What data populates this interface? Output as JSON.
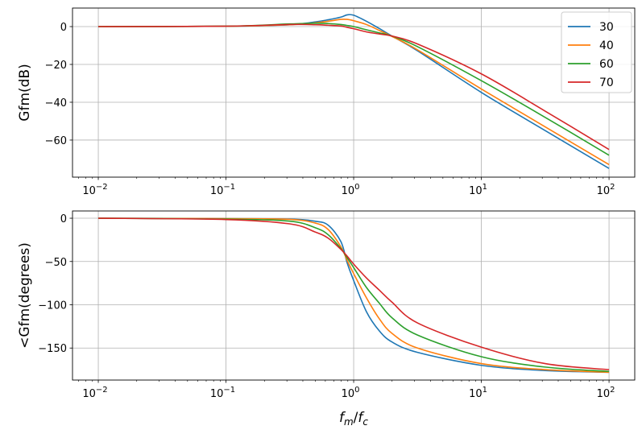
{
  "chart_data": [
    {
      "type": "line",
      "title": "",
      "xlabel": "",
      "ylabel": "Gfm(dB)",
      "xscale": "log",
      "xlim": [
        0.00628,
        159
      ],
      "ylim": [
        -79.6,
        9.8
      ],
      "grid": true,
      "legend": {
        "placement": "top-right",
        "entries": [
          "30",
          "40",
          "60",
          "70"
        ]
      },
      "xticks": [
        {
          "base": "10",
          "exp": "−2"
        },
        {
          "base": "10",
          "exp": "−1"
        },
        {
          "base": "10",
          "exp": "0"
        },
        {
          "base": "10",
          "exp": "1"
        },
        {
          "base": "10",
          "exp": "2"
        }
      ],
      "yticks": [
        "0",
        "−20",
        "−40",
        "−60"
      ],
      "ytick_values": [
        0,
        -20,
        -40,
        -60
      ],
      "x": [
        0.01,
        0.1,
        0.316,
        0.501,
        0.631,
        0.794,
        0.891,
        1,
        1.259,
        1.585,
        1.995,
        3.162,
        10,
        31.62,
        100
      ],
      "series": [
        {
          "name": "30",
          "color": "#1f77b4",
          "values": [
            0,
            0.2,
            1,
            2.5,
            3.6,
            5,
            6.2,
            6,
            2.8,
            -1,
            -5,
            -12.8,
            -34.8,
            -55,
            -75
          ]
        },
        {
          "name": "40",
          "color": "#ff7f0e",
          "values": [
            0,
            0.2,
            1,
            2,
            2.8,
            3.8,
            3.8,
            3.1,
            1.1,
            -2,
            -5.2,
            -12.3,
            -33,
            -53,
            -73
          ]
        },
        {
          "name": "60",
          "color": "#2ca02c",
          "values": [
            0,
            0.2,
            1.4,
            1.8,
            1.6,
            1.1,
            0.6,
            0,
            -1.7,
            -3.3,
            -5,
            -10.6,
            -28.6,
            -48,
            -68
          ]
        },
        {
          "name": "70",
          "color": "#d62728",
          "values": [
            0,
            0.2,
            1.1,
            1,
            0.7,
            0.3,
            -0.4,
            -1.1,
            -2.8,
            -3.9,
            -5,
            -9.2,
            -25,
            -44.7,
            -65
          ]
        }
      ]
    },
    {
      "type": "line",
      "title": "",
      "xlabel_parts": {
        "num": "f",
        "num_sub": "m",
        "slash": "/",
        "den": "f",
        "den_sub": "c"
      },
      "ylabel": "<Gfm(degrees)",
      "xscale": "log",
      "xlim": [
        0.00628,
        159
      ],
      "ylim": [
        -187,
        8.4
      ],
      "grid": true,
      "xticks": [
        {
          "base": "10",
          "exp": "−2"
        },
        {
          "base": "10",
          "exp": "−1"
        },
        {
          "base": "10",
          "exp": "0"
        },
        {
          "base": "10",
          "exp": "1"
        },
        {
          "base": "10",
          "exp": "2"
        }
      ],
      "yticks": [
        "0",
        "−50",
        "−100",
        "−150"
      ],
      "ytick_values": [
        0,
        -50,
        -100,
        -150
      ],
      "x": [
        0.01,
        0.1,
        0.316,
        0.501,
        0.631,
        0.794,
        0.891,
        1,
        1.259,
        1.585,
        1.995,
        3.162,
        10,
        31.62,
        100
      ],
      "series": [
        {
          "name": "30",
          "color": "#1f77b4",
          "values": [
            0,
            -0.5,
            -1,
            -3.5,
            -8,
            -27,
            -52,
            -72,
            -108,
            -130,
            -143,
            -155,
            -170,
            -176,
            -178
          ]
        },
        {
          "name": "40",
          "color": "#ff7f0e",
          "values": [
            0,
            -0.5,
            -1.3,
            -5.6,
            -13,
            -33,
            -49,
            -64,
            -92,
            -116,
            -133,
            -150,
            -168,
            -175,
            -178
          ]
        },
        {
          "name": "60",
          "color": "#2ca02c",
          "values": [
            0,
            -1,
            -3.4,
            -11,
            -19,
            -35,
            -46,
            -57,
            -80,
            -98,
            -115,
            -135,
            -160,
            -172,
            -177
          ]
        },
        {
          "name": "70",
          "color": "#d62728",
          "values": [
            0,
            -1.5,
            -6.5,
            -16,
            -23,
            -36,
            -44,
            -53,
            -69,
            -83,
            -97,
            -121,
            -149,
            -168,
            -175
          ]
        }
      ]
    }
  ]
}
